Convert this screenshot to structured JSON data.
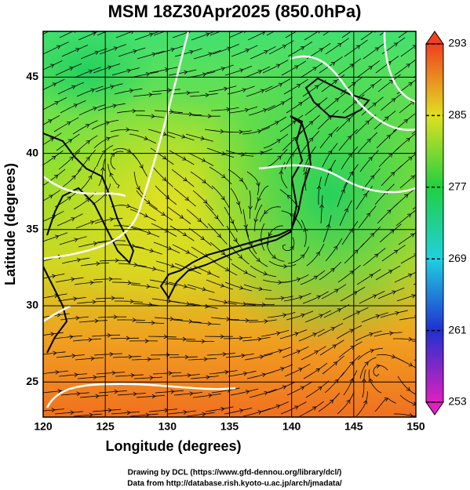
{
  "chart_data": {
    "type": "map",
    "title": "MSM 18Z30Apr2025 (850.0hPa)",
    "x_label": "Longitude (degrees)",
    "y_label": "Latitude  (degrees)",
    "xlim": [
      120,
      150
    ],
    "ylim": [
      22.7,
      48.0
    ],
    "xticks": [
      120,
      125,
      130,
      135,
      140,
      145,
      150
    ],
    "yticks": [
      25,
      30,
      35,
      40,
      45
    ],
    "grid": true,
    "colorbar": {
      "lim": [
        253,
        293
      ],
      "ticks": [
        253,
        261,
        269,
        277,
        285,
        293
      ],
      "colors": [
        "#e020c0",
        "#2030d0",
        "#20d0e0",
        "#20d040",
        "#e0e020",
        "#f04020"
      ]
    },
    "footer": [
      "Drawing by DCL (https://www.gfd-dennou.org/library/dcl/)",
      "Data from http://database.rish.kyoto-u.ac.jp/arch/jmadata/"
    ]
  }
}
